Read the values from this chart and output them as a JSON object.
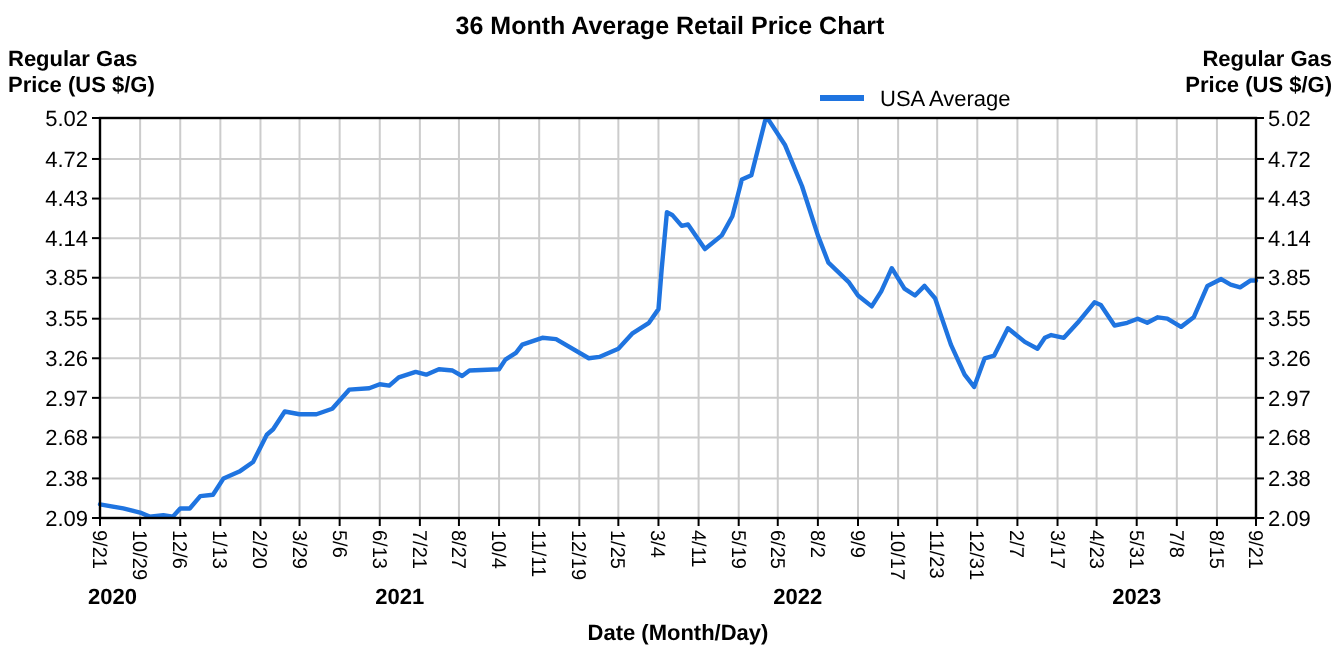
{
  "chart_data": {
    "type": "line",
    "title": "36 Month Average Retail Price Chart",
    "xlabel": "Date (Month/Day)",
    "ylabel": "Regular Gas Price (US $/G)",
    "y2label": "Regular Gas Price (US $/G)",
    "x": [
      "2020-09-21",
      "2020-10-13",
      "2020-10-29",
      "2020-11-07",
      "2020-11-20",
      "2020-11-29",
      "2020-12-06",
      "2020-12-15",
      "2020-12-25",
      "2021-01-06",
      "2021-01-16",
      "2021-01-31",
      "2021-02-13",
      "2021-02-26",
      "2021-03-04",
      "2021-03-15",
      "2021-03-29",
      "2021-04-14",
      "2021-04-29",
      "2021-05-15",
      "2021-06-03",
      "2021-06-13",
      "2021-06-22",
      "2021-07-01",
      "2021-07-17",
      "2021-07-27",
      "2021-08-08",
      "2021-08-21",
      "2021-08-30",
      "2021-09-06",
      "2021-10-04",
      "2021-10-10",
      "2021-10-20",
      "2021-10-26",
      "2021-11-14",
      "2021-11-27",
      "2021-12-28",
      "2022-01-07",
      "2022-01-25",
      "2022-02-07",
      "2022-02-23",
      "2022-03-04",
      "2022-03-07",
      "2022-03-12",
      "2022-03-17",
      "2022-03-26",
      "2022-04-01",
      "2022-04-17",
      "2022-05-03",
      "2022-05-13",
      "2022-05-22",
      "2022-05-31",
      "2022-06-13",
      "2022-06-16",
      "2022-07-02",
      "2022-07-18",
      "2022-08-02",
      "2022-08-12",
      "2022-08-31",
      "2022-09-09",
      "2022-09-22",
      "2022-10-01",
      "2022-10-11",
      "2022-10-23",
      "2022-11-02",
      "2022-11-11",
      "2022-11-21",
      "2022-12-06",
      "2022-12-19",
      "2022-12-28",
      "2023-01-07",
      "2023-01-16",
      "2023-01-29",
      "2023-02-14",
      "2023-02-26",
      "2023-03-05",
      "2023-03-11",
      "2023-03-23",
      "2023-04-05",
      "2023-04-21",
      "2023-04-27",
      "2023-05-10",
      "2023-05-22",
      "2023-06-01",
      "2023-06-10",
      "2023-06-20",
      "2023-06-29",
      "2023-07-12",
      "2023-07-24",
      "2023-08-06",
      "2023-08-19",
      "2023-08-28",
      "2023-09-06",
      "2023-09-16",
      "2023-09-21"
    ],
    "series": [
      {
        "name": "USA Average",
        "color": "#1f74e0",
        "values": [
          2.19,
          2.16,
          2.13,
          2.1,
          2.11,
          2.1,
          2.16,
          2.16,
          2.25,
          2.26,
          2.38,
          2.43,
          2.5,
          2.7,
          2.74,
          2.87,
          2.85,
          2.85,
          2.89,
          3.03,
          3.04,
          3.07,
          3.06,
          3.12,
          3.16,
          3.14,
          3.18,
          3.17,
          3.13,
          3.17,
          3.18,
          3.25,
          3.3,
          3.36,
          3.41,
          3.4,
          3.26,
          3.27,
          3.33,
          3.44,
          3.52,
          3.62,
          3.91,
          4.33,
          4.31,
          4.23,
          4.24,
          4.06,
          4.16,
          4.3,
          4.57,
          4.6,
          5.0,
          5.01,
          4.82,
          4.52,
          4.16,
          3.96,
          3.82,
          3.72,
          3.64,
          3.75,
          3.92,
          3.77,
          3.72,
          3.79,
          3.7,
          3.36,
          3.14,
          3.05,
          3.26,
          3.28,
          3.48,
          3.38,
          3.33,
          3.41,
          3.43,
          3.41,
          3.52,
          3.67,
          3.65,
          3.5,
          3.52,
          3.55,
          3.52,
          3.56,
          3.55,
          3.49,
          3.56,
          3.79,
          3.84,
          3.8,
          3.78,
          3.83,
          3.83
        ]
      }
    ],
    "xlim": [
      "2020-09-21",
      "2023-09-21"
    ],
    "xticks": [
      {
        "value": "2020-09-21",
        "label": "9/21"
      },
      {
        "value": "2020-10-29",
        "label": "10/29"
      },
      {
        "value": "2020-12-06",
        "label": "12/6"
      },
      {
        "value": "2021-01-13",
        "label": "1/13"
      },
      {
        "value": "2021-02-20",
        "label": "2/20"
      },
      {
        "value": "2021-03-29",
        "label": "3/29"
      },
      {
        "value": "2021-05-06",
        "label": "5/6"
      },
      {
        "value": "2021-06-13",
        "label": "6/13"
      },
      {
        "value": "2021-07-21",
        "label": "7/21"
      },
      {
        "value": "2021-08-27",
        "label": "8/27"
      },
      {
        "value": "2021-10-04",
        "label": "10/4"
      },
      {
        "value": "2021-11-11",
        "label": "11/11"
      },
      {
        "value": "2021-12-19",
        "label": "12/19"
      },
      {
        "value": "2022-01-25",
        "label": "1/25"
      },
      {
        "value": "2022-03-04",
        "label": "3/4"
      },
      {
        "value": "2022-04-11",
        "label": "4/11"
      },
      {
        "value": "2022-05-19",
        "label": "5/19"
      },
      {
        "value": "2022-06-25",
        "label": "6/25"
      },
      {
        "value": "2022-08-02",
        "label": "8/2"
      },
      {
        "value": "2022-09-09",
        "label": "9/9"
      },
      {
        "value": "2022-10-17",
        "label": "10/17"
      },
      {
        "value": "2022-11-23",
        "label": "11/23"
      },
      {
        "value": "2022-12-31",
        "label": "12/31"
      },
      {
        "value": "2023-02-07",
        "label": "2/7"
      },
      {
        "value": "2023-03-17",
        "label": "3/17"
      },
      {
        "value": "2023-04-23",
        "label": "4/23"
      },
      {
        "value": "2023-05-31",
        "label": "5/31"
      },
      {
        "value": "2023-07-08",
        "label": "7/8"
      },
      {
        "value": "2023-08-15",
        "label": "8/15"
      },
      {
        "value": "2023-09-21",
        "label": "9/21"
      }
    ],
    "ylim": [
      2.09,
      5.02
    ],
    "yticks": [
      2.09,
      2.38,
      2.68,
      2.97,
      3.26,
      3.55,
      3.85,
      4.14,
      4.43,
      4.72,
      5.02
    ],
    "y2lim": [
      2.09,
      5.02
    ],
    "y2ticks": [
      2.09,
      2.38,
      2.68,
      2.97,
      3.26,
      3.55,
      3.85,
      4.14,
      4.43,
      4.72,
      5.02
    ],
    "annotations": [
      "2020",
      "2021",
      "2022",
      "2023"
    ],
    "grid": true,
    "legend": "top",
    "marker": "none",
    "line_style": "solid"
  }
}
